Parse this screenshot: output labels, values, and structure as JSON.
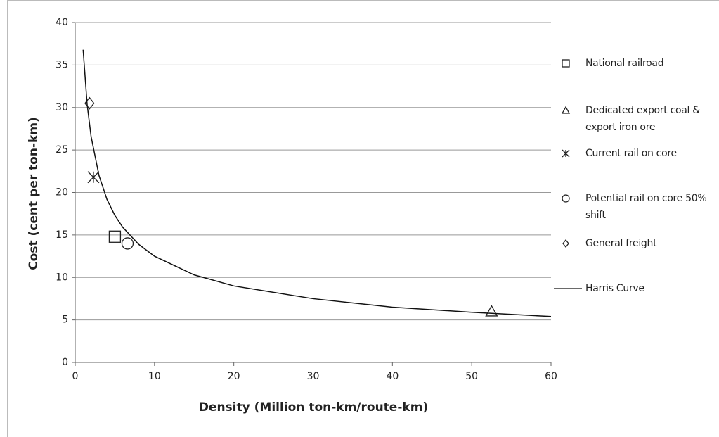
{
  "chart_data": {
    "type": "scatter",
    "x_label": "Density (Million ton-km/route-km)",
    "y_label": "Cost (cent per ton-km)",
    "xlim": [
      0,
      60
    ],
    "xticks": [
      0,
      10,
      20,
      30,
      40,
      50,
      60
    ],
    "ylim": [
      0,
      40
    ],
    "yticks": [
      0,
      5,
      10,
      15,
      20,
      25,
      30,
      35,
      40
    ],
    "grid": true,
    "legend": "right",
    "series": [
      {
        "name": "National railroad",
        "marker": "square",
        "color": "#222222",
        "x": [
          5
        ],
        "y": [
          14.8
        ]
      },
      {
        "name": "Dedicated export coal & export iron ore",
        "marker": "triangle",
        "color": "#222222",
        "x": [
          52.5
        ],
        "y": [
          6
        ]
      },
      {
        "name": "Current rail on core",
        "marker": "asterisk",
        "color": "#222222",
        "x": [
          2.3
        ],
        "y": [
          21.8
        ]
      },
      {
        "name": "Potential rail on core 50% shift",
        "marker": "circle",
        "color": "#222222",
        "x": [
          6.6
        ],
        "y": [
          14
        ]
      },
      {
        "name": "General freight",
        "marker": "diamond",
        "color": "#222222",
        "x": [
          1.8
        ],
        "y": [
          30.5
        ]
      },
      {
        "name": "Harris Curve",
        "marker": "line",
        "color": "#111111",
        "x": [
          1,
          1.5,
          2,
          3,
          4,
          5,
          6,
          8,
          10,
          15,
          20,
          30,
          40,
          50,
          60
        ],
        "y": [
          36.8,
          30.4,
          26.6,
          22.0,
          19.2,
          17.3,
          15.9,
          13.9,
          12.5,
          10.3,
          9.0,
          7.5,
          6.5,
          5.9,
          5.4
        ]
      }
    ]
  }
}
